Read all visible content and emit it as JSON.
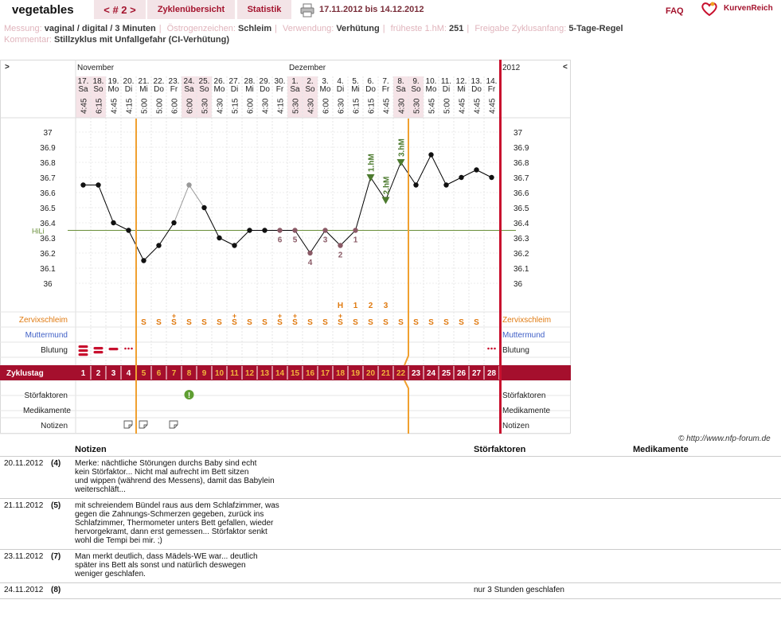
{
  "header": {
    "user": "vegetables",
    "cycle_nav": "< # 2 >",
    "tabs": [
      "Zyklenübersicht",
      "Statistik"
    ],
    "date_range": "17.11.2012 bis 14.12.2012",
    "faq": "FAQ",
    "logo": "KurvenReich"
  },
  "meta": {
    "messung_label": "Messung:",
    "messung": "vaginal / digital / 3 Minuten",
    "oestro_label": "Östrogenzeichen:",
    "oestro": "Schleim",
    "verwendung_label": "Verwendung:",
    "verwendung": "Verhütung",
    "hm_label": "früheste 1.hM:",
    "hm": "251",
    "freigabe_label": "Freigabe Zyklusanfang:",
    "freigabe": "5-Tage-Regel",
    "kommentar_label": "Kommentar:",
    "kommentar": "Stillzyklus mit Unfallgefahr (CI-Verhütung)"
  },
  "chart_data": {
    "type": "line",
    "nav_left": ">",
    "nav_right": "<",
    "year": "2012",
    "months": [
      {
        "label": "November",
        "day": 1
      },
      {
        "label": "Dezember",
        "day": 15
      }
    ],
    "dates": [
      "17.",
      "18.",
      "19.",
      "20.",
      "21.",
      "22.",
      "23.",
      "24.",
      "25.",
      "26.",
      "27.",
      "28.",
      "29.",
      "30.",
      "1.",
      "2.",
      "3.",
      "4.",
      "5.",
      "6.",
      "7.",
      "8.",
      "9.",
      "10.",
      "11.",
      "12.",
      "13.",
      "14."
    ],
    "weekdays": [
      "Sa",
      "So",
      "Mo",
      "Di",
      "Mi",
      "Do",
      "Fr",
      "Sa",
      "So",
      "Mo",
      "Di",
      "Mi",
      "Do",
      "Fr",
      "Sa",
      "So",
      "Mo",
      "Di",
      "Mi",
      "Do",
      "Fr",
      "Sa",
      "So",
      "Mo",
      "Di",
      "Mi",
      "Do",
      "Fr"
    ],
    "times": [
      "4:45",
      "6:15",
      "4:45",
      "4:15",
      "5:00",
      "5:00",
      "6:00",
      "6:00",
      "5:30",
      "4:30",
      "5:15",
      "6:00",
      "4:30",
      "4:15",
      "5:30",
      "4:30",
      "6:00",
      "6:30",
      "6:15",
      "6:15",
      "4:45",
      "4:30",
      "5:30",
      "5:45",
      "5:00",
      "4:45",
      "4:45",
      "4:45"
    ],
    "cycle_days": [
      "1",
      "2",
      "3",
      "4",
      "5",
      "6",
      "7",
      "8",
      "9",
      "10",
      "11",
      "12",
      "13",
      "14",
      "15",
      "16",
      "17",
      "18",
      "19",
      "20",
      "21",
      "22",
      "23",
      "24",
      "25",
      "26",
      "27",
      "28"
    ],
    "temperatures": [
      36.65,
      36.65,
      36.4,
      36.35,
      36.15,
      36.25,
      36.4,
      36.65,
      36.5,
      36.3,
      36.25,
      36.35,
      36.35,
      36.35,
      36.35,
      36.2,
      36.35,
      36.25,
      36.35,
      36.7,
      36.55,
      36.8,
      36.65,
      36.85,
      36.65,
      36.7,
      36.75,
      36.7
    ],
    "excluded_day": 8,
    "y_ticks": [
      "37",
      "36.9",
      "36.8",
      "36.7",
      "36.6",
      "36.5",
      "36.4",
      "36.3",
      "36.2",
      "36.1",
      "36"
    ],
    "ylim": [
      36.0,
      37.0
    ],
    "coverline": {
      "label": "HiLi",
      "value": 36.35
    },
    "low_labels": [
      {
        "day": 14,
        "text": "6"
      },
      {
        "day": 15,
        "text": "5"
      },
      {
        "day": 16,
        "text": "4"
      },
      {
        "day": 17,
        "text": "3"
      },
      {
        "day": 18,
        "text": "2"
      },
      {
        "day": 19,
        "text": "1"
      }
    ],
    "high_marks": [
      {
        "day": 20,
        "text": "1.hM"
      },
      {
        "day": 21,
        "text": "2.hM"
      },
      {
        "day": 22,
        "text": "3.hM"
      }
    ],
    "peak_marks": [
      {
        "day": 18,
        "text": "H"
      },
      {
        "day": 19,
        "text": "1"
      },
      {
        "day": 20,
        "text": "2"
      },
      {
        "day": 21,
        "text": "3"
      }
    ],
    "rows": {
      "zervix": "Zervixschleim",
      "muttermund": "Muttermund",
      "blutung": "Blutung",
      "zyklustag": "Zyklustag",
      "stoer": "Störfaktoren",
      "medi": "Medikamente",
      "notizen": "Notizen"
    },
    "mucus_symbol": "S",
    "mucus_days": [
      5,
      6,
      7,
      8,
      9,
      10,
      11,
      12,
      13,
      14,
      15,
      16,
      17,
      18,
      19,
      20,
      21,
      22,
      23,
      24,
      25,
      26,
      27
    ],
    "mucus_plus_days": [
      7,
      11,
      14,
      15,
      18
    ],
    "bleeding": [
      {
        "day": 1,
        "type": "heavy"
      },
      {
        "day": 2,
        "type": "medium"
      },
      {
        "day": 3,
        "type": "light"
      },
      {
        "day": 4,
        "type": "spotting"
      },
      {
        "day": 28,
        "type": "spotting"
      }
    ],
    "disturbance_days": [
      8
    ],
    "note_days": [
      4,
      5,
      7
    ],
    "orange_lines_after_day": [
      4,
      22
    ]
  },
  "copyright": "© http://www.nfp-forum.de",
  "notes_table": {
    "headers": [
      "Notizen",
      "Störfaktoren",
      "Medikamente"
    ],
    "rows": [
      {
        "date": "20.11.2012",
        "num": "(4)",
        "note": "Merke: nächtliche Störungen durchs Baby sind echt\nkein Störfaktor... Nicht mal aufrecht im Bett sitzen\nund wippen (während des Messens), damit das Babylein\nweiterschläft...",
        "stoer": "",
        "medi": ""
      },
      {
        "date": "21.11.2012",
        "num": "(5)",
        "note": "mit schreiendem Bündel raus aus dem Schlafzimmer, was\ngegen die Zahnungs-Schmerzen gegeben, zurück ins\nSchlafzimmer, Thermometer unters Bett gefallen, wieder\nhervorgekramt, dann erst gemessen... Störfaktor senkt\nwohl die Tempi bei mir. ;)",
        "stoer": "",
        "medi": ""
      },
      {
        "date": "23.11.2012",
        "num": "(7)",
        "note": "Man merkt deutlich, dass Mädels-WE war... deutlich\nspäter ins Bett als sonst und natürlich deswegen\nweniger geschlafen.",
        "stoer": "",
        "medi": ""
      },
      {
        "date": "24.11.2012",
        "num": "(8)",
        "note": "",
        "stoer": "nur 3 Stunden geschlafen",
        "medi": ""
      }
    ]
  }
}
